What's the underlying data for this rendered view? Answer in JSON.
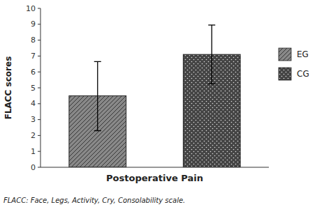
{
  "chart_data": {
    "type": "bar",
    "categories": [
      "EG",
      "CG"
    ],
    "values": [
      4.5,
      7.1
    ],
    "error_up": [
      2.15,
      1.85
    ],
    "error_down": [
      2.2,
      1.85
    ],
    "colors": [
      "#888888",
      "#444444"
    ],
    "xlabel": "Postoperative Pain",
    "ylabel": "FLACC scores",
    "annotations": [
      "FLACC: Face, Legs, Activity, Cry, Consolability scale."
    ],
    "ylim": [
      0,
      10
    ],
    "yticks": [
      0,
      1,
      2,
      3,
      4,
      5,
      6,
      7,
      8,
      9,
      10
    ],
    "grid": false,
    "legend": "right",
    "tick_labels": "y"
  }
}
